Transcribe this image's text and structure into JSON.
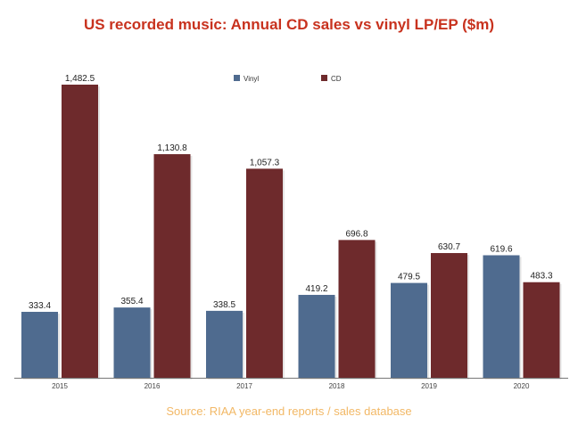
{
  "chart_data": {
    "type": "bar",
    "title": "US recorded music: Annual CD sales vs vinyl LP/EP ($m)",
    "categories": [
      "2015",
      "2016",
      "2017",
      "2018",
      "2019",
      "2020"
    ],
    "series": [
      {
        "name": "Vinyl",
        "color": "#4f6b8f",
        "values": [
          333.4,
          355.4,
          338.5,
          419.2,
          479.5,
          619.6
        ],
        "labels": [
          "333.4",
          "355.4",
          "338.5",
          "419.2",
          "479.5",
          "619.6"
        ]
      },
      {
        "name": "CD",
        "color": "#6e2a2c",
        "values": [
          1482.5,
          1130.8,
          1057.3,
          696.8,
          630.7,
          483.3
        ],
        "labels": [
          "1,482.5",
          "1,130.8",
          "1,057.3",
          "696.8",
          "630.7",
          "483.3"
        ]
      }
    ],
    "ylim": [
      0,
      1482.5
    ],
    "grid": false,
    "legend": "top-center",
    "source": "Source: RIAA year-end reports / sales database"
  }
}
